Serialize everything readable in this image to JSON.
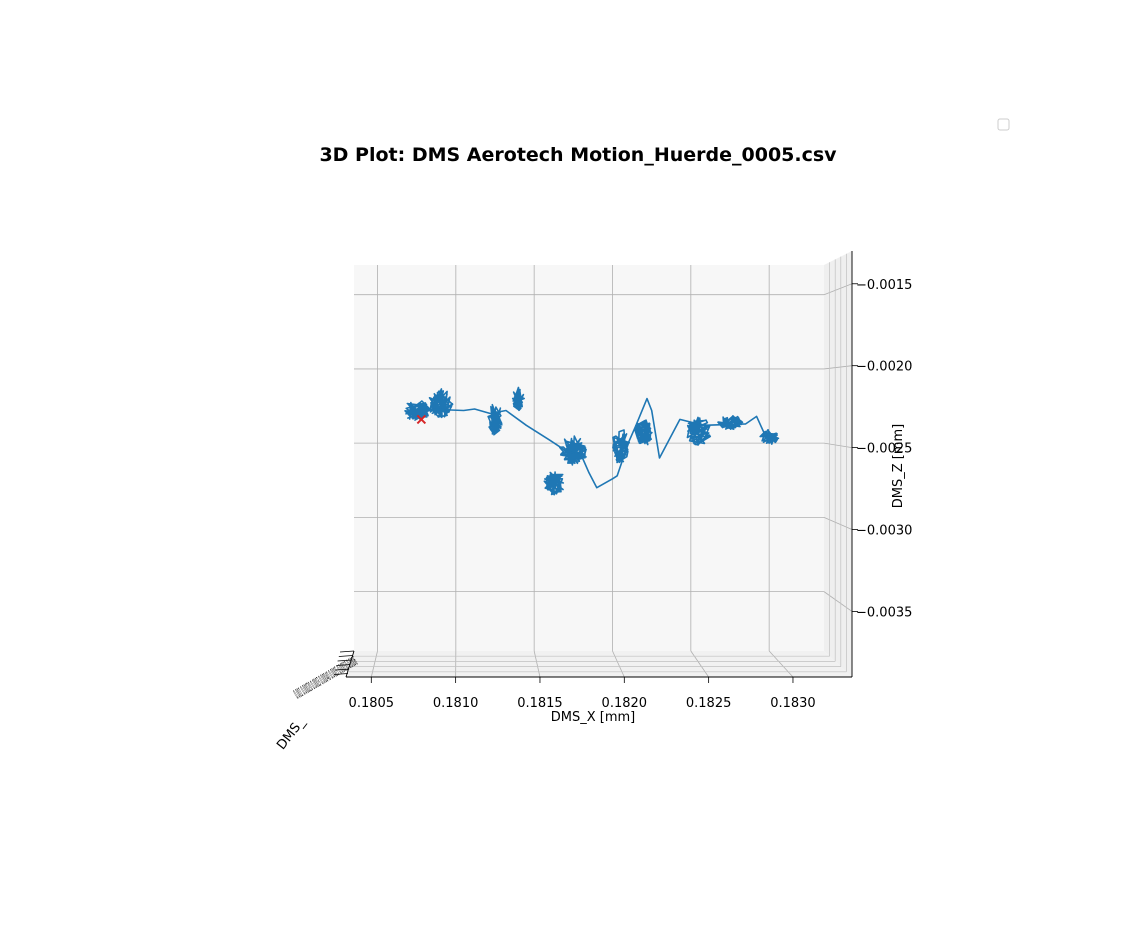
{
  "chart_data": {
    "type": "line",
    "title": "3D Plot: DMS Aerotech Motion_Huerde_0005.csv",
    "xlabel": "DMS_X [mm]",
    "ylabel": "DMS_",
    "zlabel": "DMS_Z [mm]",
    "view": "front elevation, Y axis foreshortened",
    "xlim": [
      0.18035,
      0.18335
    ],
    "zlim": [
      -0.0039,
      -0.0013
    ],
    "x_ticks": [
      "0.1805",
      "0.1810",
      "0.1815",
      "0.1820",
      "0.1825",
      "0.1830"
    ],
    "x_tick_values": [
      0.1805,
      0.181,
      0.1815,
      0.182,
      0.1825,
      0.183
    ],
    "z_ticks": [
      "−0.0015",
      "−0.0020",
      "−0.0025",
      "−0.0030",
      "−0.0035"
    ],
    "z_tick_values": [
      -0.0015,
      -0.002,
      -0.0025,
      -0.003,
      -0.0035
    ],
    "y_tick_text": "0.001 0.00020 0.0003 0.00040 0.0005 0.00050 0.0006",
    "grid": true,
    "legend": "top-right (empty)",
    "series": [
      {
        "color": "#1f77b4",
        "clusters": [
          {
            "x": 0.18075,
            "z": -0.00228,
            "rx": 9e-05,
            "rz": 7e-05,
            "n": 70
          },
          {
            "x": 0.1809,
            "z": -0.00223,
            "rx": 8e-05,
            "rz": 0.0001,
            "n": 70
          },
          {
            "x": 0.18125,
            "z": -0.00234,
            "rx": 5e-05,
            "rz": 0.00011,
            "n": 60
          },
          {
            "x": 0.1814,
            "z": -0.0022,
            "rx": 4e-05,
            "rz": 8e-05,
            "n": 50
          },
          {
            "x": 0.18163,
            "z": -0.00276,
            "rx": 7e-05,
            "rz": 9e-05,
            "n": 60
          },
          {
            "x": 0.18175,
            "z": -0.00255,
            "rx": 9e-05,
            "rz": 0.0001,
            "n": 80
          },
          {
            "x": 0.18205,
            "z": -0.00252,
            "rx": 6e-05,
            "rz": 0.00012,
            "n": 70
          },
          {
            "x": 0.1822,
            "z": -0.00243,
            "rx": 6e-05,
            "rz": 9e-05,
            "n": 70
          },
          {
            "x": 0.18255,
            "z": -0.00242,
            "rx": 8e-05,
            "rz": 0.0001,
            "n": 70
          },
          {
            "x": 0.18275,
            "z": -0.00236,
            "rx": 8e-05,
            "rz": 5e-05,
            "n": 60
          },
          {
            "x": 0.183,
            "z": -0.00246,
            "rx": 6e-05,
            "rz": 5e-05,
            "n": 50
          }
        ],
        "connectors": [
          [
            0.1808,
            -0.00227
          ],
          [
            0.18105,
            -0.00228
          ],
          [
            0.18112,
            -0.00227
          ],
          [
            0.18122,
            -0.0023
          ],
          [
            0.18132,
            -0.00228
          ],
          [
            0.18145,
            -0.00238
          ],
          [
            0.1816,
            -0.00248
          ],
          [
            0.1817,
            -0.00255
          ],
          [
            0.1818,
            -0.00258
          ],
          [
            0.18185,
            -0.0027
          ],
          [
            0.1819,
            -0.0028
          ],
          [
            0.182,
            -0.00274
          ],
          [
            0.18203,
            -0.00272
          ],
          [
            0.1821,
            -0.0025
          ],
          [
            0.18215,
            -0.00238
          ],
          [
            0.18222,
            -0.0022
          ],
          [
            0.18225,
            -0.00228
          ],
          [
            0.1823,
            -0.0026
          ],
          [
            0.18243,
            -0.00234
          ],
          [
            0.18258,
            -0.00238
          ],
          [
            0.18285,
            -0.00237
          ],
          [
            0.18292,
            -0.00232
          ],
          [
            0.18298,
            -0.00246
          ]
        ]
      },
      {
        "type": "marker",
        "marker": "x",
        "color": "#d62728",
        "x": 0.18078,
        "z": -0.00234
      }
    ]
  }
}
